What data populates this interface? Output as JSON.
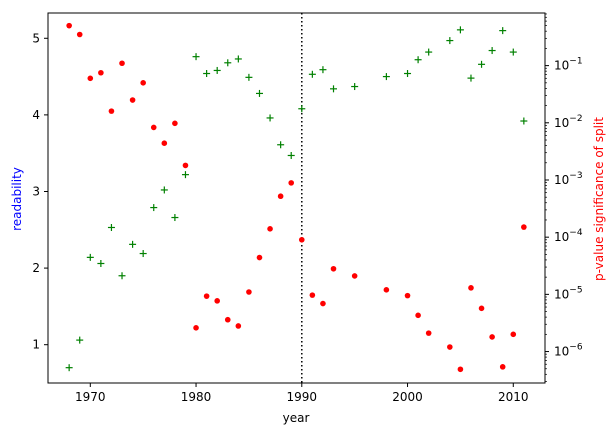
{
  "chart_data": {
    "type": "scatter",
    "xlabel": "year",
    "ylabel_left": "readability",
    "ylabel_right": "p-value significance of split",
    "xlim": [
      1966,
      2013
    ],
    "ylim_left": [
      0.5,
      5.33
    ],
    "ylim_right_log10": [
      -6.55,
      -0.08
    ],
    "right_axis_scale": "log",
    "x_ticks": [
      1970,
      1980,
      1990,
      2000,
      2010
    ],
    "x_tick_labels": [
      "1970",
      "1980",
      "1990",
      "2000",
      "2010"
    ],
    "y_left_ticks": [
      1,
      2,
      3,
      4,
      5
    ],
    "y_left_tick_labels": [
      "1",
      "2",
      "3",
      "4",
      "5"
    ],
    "y_right_ticks": [
      -6,
      -5,
      -4,
      -3,
      -2,
      -1
    ],
    "y_right_tick_labels": [
      "10",
      "10",
      "10",
      "10",
      "10",
      "10"
    ],
    "y_right_tick_exponents": [
      "−6",
      "−5",
      "−4",
      "−3",
      "−2",
      "−1"
    ],
    "split_line_x": 1990,
    "colors": {
      "left_axis": "#0000ff",
      "right_axis": "#ff0000",
      "readability": "#008000",
      "pvalue": "#ff0000"
    },
    "series": [
      {
        "name": "readability",
        "axis": "left",
        "marker": "plus",
        "color": "#008000",
        "points": [
          [
            1968,
            0.7
          ],
          [
            1969,
            1.06
          ],
          [
            1970,
            2.14
          ],
          [
            1971,
            2.06
          ],
          [
            1972,
            2.53
          ],
          [
            1973,
            1.9
          ],
          [
            1974,
            2.31
          ],
          [
            1975,
            2.19
          ],
          [
            1976,
            2.79
          ],
          [
            1977,
            3.02
          ],
          [
            1978,
            2.66
          ],
          [
            1979,
            3.22
          ],
          [
            1980,
            4.76
          ],
          [
            1981,
            4.54
          ],
          [
            1982,
            4.58
          ],
          [
            1983,
            4.68
          ],
          [
            1984,
            4.73
          ],
          [
            1985,
            4.49
          ],
          [
            1986,
            4.28
          ],
          [
            1987,
            3.96
          ],
          [
            1988,
            3.61
          ],
          [
            1989,
            3.47
          ],
          [
            1990,
            4.08
          ],
          [
            1991,
            4.53
          ],
          [
            1992,
            4.59
          ],
          [
            1993,
            4.34
          ],
          [
            1995,
            4.37
          ],
          [
            1998,
            4.5
          ],
          [
            2000,
            4.54
          ],
          [
            2001,
            4.72
          ],
          [
            2002,
            4.82
          ],
          [
            2004,
            4.97
          ],
          [
            2005,
            5.11
          ],
          [
            2006,
            4.48
          ],
          [
            2007,
            4.66
          ],
          [
            2008,
            4.84
          ],
          [
            2009,
            5.1
          ],
          [
            2010,
            4.82
          ],
          [
            2011,
            3.92
          ]
        ]
      },
      {
        "name": "p-value significance of split",
        "axis": "right",
        "marker": "dot",
        "color": "#ff0000",
        "points": [
          [
            1968,
            0.5
          ],
          [
            1969,
            0.35
          ],
          [
            1970,
            0.06
          ],
          [
            1971,
            0.075
          ],
          [
            1972,
            0.016
          ],
          [
            1973,
            0.11
          ],
          [
            1974,
            0.025
          ],
          [
            1975,
            0.05
          ],
          [
            1976,
            0.0083
          ],
          [
            1977,
            0.0044
          ],
          [
            1978,
            0.0098
          ],
          [
            1979,
            0.0018
          ],
          [
            1980,
            2.6e-06
          ],
          [
            1981,
            9.3e-06
          ],
          [
            1982,
            7.7e-06
          ],
          [
            1983,
            3.6e-06
          ],
          [
            1984,
            2.8e-06
          ],
          [
            1985,
            1.1e-05
          ],
          [
            1986,
            4.4e-05
          ],
          [
            1987,
            0.00014
          ],
          [
            1988,
            0.00052
          ],
          [
            1989,
            0.00089
          ],
          [
            1990,
            9e-05
          ],
          [
            1991,
            9.7e-06
          ],
          [
            1992,
            6.9e-06
          ],
          [
            1993,
            2.8e-05
          ],
          [
            1995,
            2.1e-05
          ],
          [
            1998,
            1.2e-05
          ],
          [
            2000,
            9.5e-06
          ],
          [
            2001,
            4.3e-06
          ],
          [
            2002,
            2.1e-06
          ],
          [
            2004,
            1.2e-06
          ],
          [
            2005,
            4.9e-07
          ],
          [
            2006,
            1.3e-05
          ],
          [
            2007,
            5.7e-06
          ],
          [
            2008,
            1.8e-06
          ],
          [
            2009,
            5.4e-07
          ],
          [
            2010,
            2e-06
          ],
          [
            2011,
            0.00015
          ]
        ]
      }
    ]
  }
}
